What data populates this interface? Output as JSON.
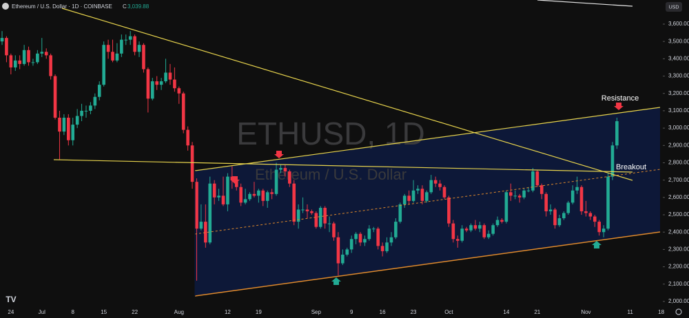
{
  "chart_data": {
    "type": "candlestick",
    "title": "Ethereum / U.S. Dollar · 1D · COINBASE",
    "close_label": "C",
    "close_value": "3,039.88",
    "currency": "USD",
    "watermark": "ETHUSD, 1D",
    "watermark_subtitle": "Ethereum / U.S. Dollar",
    "annotations": [
      "Resistance",
      "Breakout"
    ],
    "up_color": "#22ab94",
    "down_color": "#f23645",
    "ylim": [
      1968,
      3739
    ],
    "yticks": [
      {
        "value": 2000,
        "label": "2,000.00"
      },
      {
        "value": 2100,
        "label": "2,100.00"
      },
      {
        "value": 2200,
        "label": "2,200.00"
      },
      {
        "value": 2300,
        "label": "2,300.00"
      },
      {
        "value": 2400,
        "label": "2,400.00"
      },
      {
        "value": 2500,
        "label": "2,500.00"
      },
      {
        "value": 2600,
        "label": "2,600.00"
      },
      {
        "value": 2700,
        "label": "2,700.00"
      },
      {
        "value": 2800,
        "label": "2,800.00"
      },
      {
        "value": 2900,
        "label": "2,900.00"
      },
      {
        "value": 3000,
        "label": "3,000.00"
      },
      {
        "value": 3100,
        "label": "3,100.00"
      },
      {
        "value": 3200,
        "label": "3,200.00"
      },
      {
        "value": 3300,
        "label": "3,300.00"
      },
      {
        "value": 3400,
        "label": "3,400.00"
      },
      {
        "value": 3500,
        "label": "3,500.00"
      },
      {
        "value": 3600,
        "label": "3,600.00"
      }
    ],
    "categories": [
      null,
      null,
      "24",
      null,
      null,
      null,
      null,
      null,
      null,
      "Jul",
      null,
      null,
      null,
      null,
      null,
      null,
      "8",
      null,
      null,
      null,
      null,
      null,
      null,
      "15",
      null,
      null,
      null,
      null,
      null,
      null,
      "22",
      null,
      null,
      null,
      null,
      null,
      null,
      null,
      null,
      null,
      "Aug",
      null,
      null,
      null,
      null,
      null,
      null,
      null,
      null,
      null,
      null,
      "12",
      null,
      null,
      null,
      null,
      null,
      null,
      "19",
      null,
      null,
      null,
      null,
      null,
      null,
      null,
      null,
      null,
      null,
      null,
      null,
      "Sep",
      null,
      null,
      null,
      null,
      null,
      null,
      null,
      "9",
      null,
      null,
      null,
      null,
      null,
      null,
      "16",
      null,
      null,
      null,
      null,
      null,
      null,
      "23",
      null,
      null,
      null,
      null,
      null,
      null,
      null,
      "Oct",
      null,
      null,
      null,
      null,
      null,
      null,
      null,
      null,
      null,
      null,
      null,
      null,
      "14",
      null,
      null,
      null,
      null,
      null,
      null,
      "21",
      null,
      null,
      null,
      null,
      null,
      null,
      null,
      null,
      null,
      null,
      "Nov",
      null,
      null,
      null,
      null,
      null,
      null,
      null,
      null,
      null,
      "11",
      null,
      null,
      null,
      null,
      null,
      null,
      "18"
    ],
    "ohlc": [
      [
        3500,
        3560,
        3480,
        3520
      ],
      [
        3520,
        3530,
        3380,
        3420
      ],
      [
        3420,
        3430,
        3310,
        3350
      ],
      [
        3350,
        3420,
        3330,
        3390
      ],
      [
        3390,
        3420,
        3340,
        3370
      ],
      [
        3370,
        3480,
        3360,
        3450
      ],
      [
        3450,
        3470,
        3360,
        3380
      ],
      [
        3380,
        3400,
        3360,
        3380
      ],
      [
        3380,
        3450,
        3370,
        3430
      ],
      [
        3430,
        3520,
        3410,
        3440
      ],
      [
        3440,
        3460,
        3400,
        3420
      ],
      [
        3420,
        3430,
        3280,
        3300
      ],
      [
        3300,
        3310,
        3050,
        3060
      ],
      [
        3060,
        3100,
        2820,
        2980
      ],
      [
        2980,
        3080,
        2960,
        3060
      ],
      [
        3060,
        3080,
        2900,
        2930
      ],
      [
        2930,
        3060,
        2900,
        3020
      ],
      [
        3020,
        3110,
        3000,
        3070
      ],
      [
        3070,
        3140,
        3040,
        3100
      ],
      [
        3100,
        3130,
        3060,
        3100
      ],
      [
        3100,
        3150,
        3080,
        3130
      ],
      [
        3130,
        3200,
        3110,
        3180
      ],
      [
        3180,
        3270,
        3160,
        3250
      ],
      [
        3250,
        3500,
        3240,
        3480
      ],
      [
        3480,
        3510,
        3400,
        3440
      ],
      [
        3440,
        3510,
        3380,
        3390
      ],
      [
        3390,
        3490,
        3380,
        3430
      ],
      [
        3430,
        3540,
        3410,
        3510
      ],
      [
        3510,
        3540,
        3480,
        3510
      ],
      [
        3510,
        3560,
        3480,
        3530
      ],
      [
        3530,
        3540,
        3420,
        3440
      ],
      [
        3440,
        3500,
        3410,
        3480
      ],
      [
        3480,
        3490,
        3320,
        3340
      ],
      [
        3340,
        3350,
        3090,
        3170
      ],
      [
        3170,
        3290,
        3160,
        3270
      ],
      [
        3270,
        3300,
        3220,
        3250
      ],
      [
        3250,
        3290,
        3220,
        3270
      ],
      [
        3270,
        3400,
        3260,
        3320
      ],
      [
        3320,
        3370,
        3250,
        3280
      ],
      [
        3280,
        3350,
        3210,
        3230
      ],
      [
        3230,
        3240,
        3140,
        3200
      ],
      [
        3200,
        3210,
        2970,
        2990
      ],
      [
        2990,
        3010,
        2870,
        2900
      ],
      [
        2900,
        2920,
        2650,
        2690
      ],
      [
        2690,
        2710,
        2120,
        2420
      ],
      [
        2420,
        2560,
        2410,
        2460
      ],
      [
        2460,
        2560,
        2310,
        2340
      ],
      [
        2340,
        2720,
        2330,
        2680
      ],
      [
        2680,
        2700,
        2560,
        2600
      ],
      [
        2600,
        2650,
        2580,
        2610
      ],
      [
        2610,
        2720,
        2550,
        2560
      ],
      [
        2560,
        2740,
        2520,
        2720
      ],
      [
        2720,
        2780,
        2650,
        2700
      ],
      [
        2700,
        2720,
        2640,
        2660
      ],
      [
        2660,
        2680,
        2550,
        2570
      ],
      [
        2570,
        2650,
        2560,
        2590
      ],
      [
        2590,
        2630,
        2580,
        2620
      ],
      [
        2620,
        2690,
        2600,
        2610
      ],
      [
        2610,
        2650,
        2570,
        2640
      ],
      [
        2640,
        2650,
        2550,
        2580
      ],
      [
        2580,
        2640,
        2540,
        2630
      ],
      [
        2630,
        2650,
        2590,
        2620
      ],
      [
        2620,
        2800,
        2610,
        2760
      ],
      [
        2760,
        2790,
        2740,
        2770
      ],
      [
        2770,
        2790,
        2720,
        2750
      ],
      [
        2750,
        2760,
        2660,
        2680
      ],
      [
        2680,
        2700,
        2440,
        2460
      ],
      [
        2460,
        2560,
        2420,
        2530
      ],
      [
        2530,
        2600,
        2510,
        2530
      ],
      [
        2530,
        2560,
        2480,
        2520
      ],
      [
        2520,
        2530,
        2500,
        2510
      ],
      [
        2510,
        2520,
        2420,
        2430
      ],
      [
        2430,
        2550,
        2420,
        2540
      ],
      [
        2540,
        2550,
        2420,
        2450
      ],
      [
        2450,
        2490,
        2400,
        2450
      ],
      [
        2450,
        2460,
        2350,
        2370
      ],
      [
        2370,
        2400,
        2150,
        2220
      ],
      [
        2220,
        2300,
        2210,
        2270
      ],
      [
        2270,
        2310,
        2260,
        2300
      ],
      [
        2300,
        2380,
        2280,
        2360
      ],
      [
        2360,
        2400,
        2330,
        2390
      ],
      [
        2390,
        2400,
        2320,
        2340
      ],
      [
        2340,
        2380,
        2320,
        2360
      ],
      [
        2360,
        2440,
        2350,
        2420
      ],
      [
        2420,
        2430,
        2400,
        2420
      ],
      [
        2420,
        2430,
        2300,
        2320
      ],
      [
        2320,
        2340,
        2260,
        2290
      ],
      [
        2290,
        2370,
        2280,
        2340
      ],
      [
        2340,
        2400,
        2320,
        2370
      ],
      [
        2370,
        2480,
        2360,
        2460
      ],
      [
        2460,
        2570,
        2450,
        2560
      ],
      [
        2560,
        2620,
        2540,
        2610
      ],
      [
        2610,
        2640,
        2560,
        2580
      ],
      [
        2580,
        2700,
        2570,
        2640
      ],
      [
        2640,
        2670,
        2620,
        2650
      ],
      [
        2650,
        2670,
        2560,
        2580
      ],
      [
        2580,
        2640,
        2570,
        2630
      ],
      [
        2630,
        2730,
        2620,
        2700
      ],
      [
        2700,
        2720,
        2660,
        2680
      ],
      [
        2680,
        2700,
        2640,
        2660
      ],
      [
        2660,
        2670,
        2590,
        2600
      ],
      [
        2600,
        2610,
        2430,
        2450
      ],
      [
        2450,
        2470,
        2340,
        2360
      ],
      [
        2360,
        2380,
        2310,
        2350
      ],
      [
        2350,
        2440,
        2340,
        2420
      ],
      [
        2420,
        2430,
        2400,
        2410
      ],
      [
        2410,
        2450,
        2400,
        2440
      ],
      [
        2440,
        2470,
        2410,
        2420
      ],
      [
        2420,
        2460,
        2400,
        2440
      ],
      [
        2440,
        2450,
        2360,
        2370
      ],
      [
        2370,
        2410,
        2360,
        2390
      ],
      [
        2390,
        2450,
        2380,
        2440
      ],
      [
        2440,
        2490,
        2430,
        2470
      ],
      [
        2470,
        2480,
        2450,
        2460
      ],
      [
        2460,
        2640,
        2450,
        2630
      ],
      [
        2630,
        2680,
        2580,
        2610
      ],
      [
        2610,
        2640,
        2590,
        2610
      ],
      [
        2610,
        2620,
        2570,
        2600
      ],
      [
        2600,
        2650,
        2590,
        2640
      ],
      [
        2640,
        2660,
        2630,
        2640
      ],
      [
        2640,
        2770,
        2630,
        2750
      ],
      [
        2750,
        2760,
        2660,
        2670
      ],
      [
        2670,
        2680,
        2590,
        2620
      ],
      [
        2620,
        2630,
        2490,
        2520
      ],
      [
        2520,
        2560,
        2500,
        2530
      ],
      [
        2530,
        2540,
        2420,
        2440
      ],
      [
        2440,
        2500,
        2430,
        2480
      ],
      [
        2480,
        2520,
        2470,
        2510
      ],
      [
        2510,
        2580,
        2500,
        2570
      ],
      [
        2570,
        2670,
        2560,
        2640
      ],
      [
        2640,
        2720,
        2620,
        2660
      ],
      [
        2660,
        2670,
        2500,
        2520
      ],
      [
        2520,
        2580,
        2490,
        2510
      ],
      [
        2510,
        2520,
        2470,
        2490
      ],
      [
        2490,
        2500,
        2430,
        2460
      ],
      [
        2460,
        2470,
        2380,
        2400
      ],
      [
        2400,
        2440,
        2370,
        2420
      ],
      [
        2420,
        2740,
        2410,
        2720
      ],
      [
        2720,
        2920,
        2700,
        2900
      ],
      [
        2900,
        3060,
        2880,
        3039.88
      ],
      null,
      null,
      null,
      null,
      null,
      null,
      null,
      null,
      null,
      null
    ]
  }
}
